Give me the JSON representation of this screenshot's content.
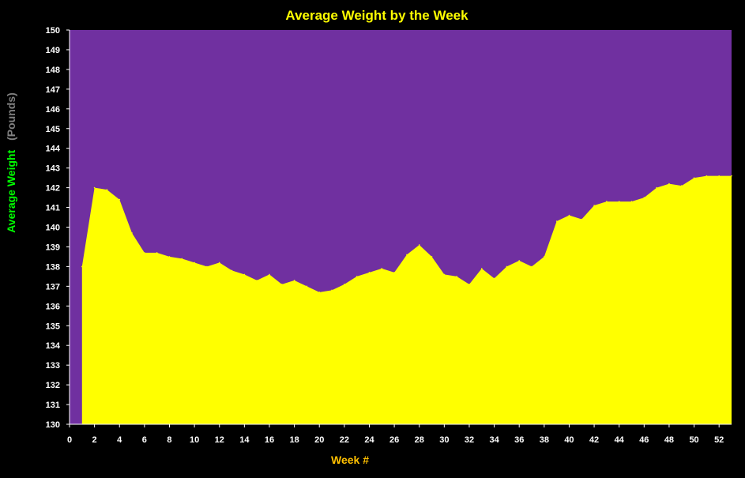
{
  "chart_data": {
    "type": "area",
    "title": "Average Weight by the Week",
    "xlabel": "Week #",
    "ylabel_main": "Average Weight",
    "ylabel_unit": "(Pounds)",
    "xlim": [
      0,
      53
    ],
    "ylim": [
      130,
      150
    ],
    "x_ticks": [
      0,
      2,
      4,
      6,
      8,
      10,
      12,
      14,
      16,
      18,
      20,
      22,
      24,
      26,
      28,
      30,
      32,
      34,
      36,
      38,
      40,
      42,
      44,
      46,
      48,
      50,
      52
    ],
    "y_ticks": [
      130,
      131,
      132,
      133,
      134,
      135,
      136,
      137,
      138,
      139,
      140,
      141,
      142,
      143,
      144,
      145,
      146,
      147,
      148,
      149,
      150
    ],
    "grid": false,
    "legend": "none",
    "colors": {
      "background": "#000000",
      "plot_area": "#7030A0",
      "area_fill": "#FFFF00",
      "title": "#FFFF00",
      "xlabel": "#FFC000",
      "ylabel_main": "#00FF00",
      "ylabel_unit": "#808080",
      "tick_labels": "#FFFFFF"
    },
    "series": [
      {
        "x": [
          1,
          2,
          3,
          4,
          5,
          6,
          7,
          8,
          9,
          10,
          11,
          12,
          13,
          14,
          15,
          16,
          17,
          18,
          19,
          20,
          21,
          22,
          23,
          24,
          25,
          26,
          27,
          28,
          29,
          30,
          31,
          32,
          33,
          34,
          35,
          36,
          37,
          38,
          39,
          40,
          41,
          42,
          43,
          44,
          45,
          46,
          47,
          48,
          49,
          50,
          51,
          52,
          53
        ],
        "values": [
          138.0,
          142.0,
          141.9,
          141.4,
          139.7,
          138.7,
          138.7,
          138.5,
          138.4,
          138.2,
          138.0,
          138.2,
          137.8,
          137.6,
          137.3,
          137.6,
          137.1,
          137.3,
          137.0,
          136.7,
          136.8,
          137.1,
          137.5,
          137.7,
          137.9,
          137.7,
          138.6,
          139.1,
          138.5,
          137.6,
          137.5,
          137.1,
          137.9,
          137.4,
          138.0,
          138.3,
          138.0,
          138.5,
          140.3,
          140.6,
          140.4,
          141.1,
          141.3,
          141.3,
          141.3,
          141.5,
          142.0,
          142.2,
          142.1,
          142.5,
          142.6,
          142.6,
          142.6
        ]
      }
    ]
  }
}
